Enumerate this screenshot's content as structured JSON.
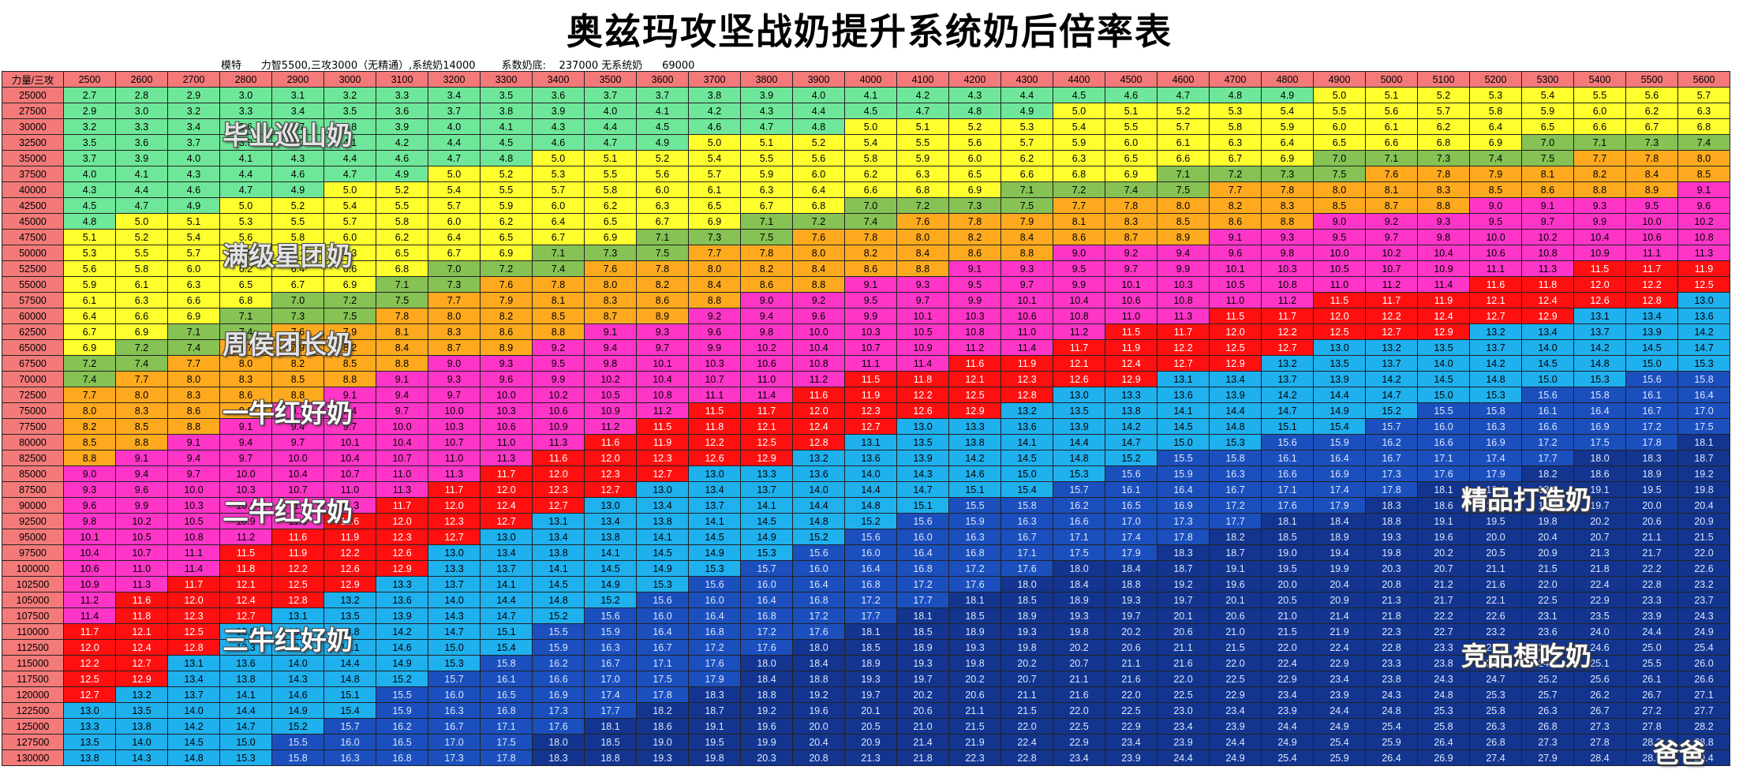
{
  "title": "奥兹玛攻坚战奶提升系统奶后倍率表",
  "subtitle": "模特      力智5500,三攻3000（无精通）,系统奶14000        系数奶底:    237000 无系统奶      69000",
  "corner_label": "力量/三攻",
  "columns": [
    2500,
    2600,
    2700,
    2800,
    2900,
    3000,
    3100,
    3200,
    3300,
    3400,
    3500,
    3600,
    3700,
    3800,
    3900,
    4000,
    4100,
    4200,
    4300,
    4400,
    4500,
    4600,
    4700,
    4800,
    4900,
    5000,
    5100,
    5200,
    5300,
    5400,
    5500,
    5600
  ],
  "rows": [
    25000,
    27500,
    30000,
    32500,
    35000,
    37500,
    40000,
    42500,
    45000,
    47500,
    50000,
    52500,
    55000,
    57500,
    60000,
    62500,
    65000,
    67500,
    70000,
    72500,
    75000,
    77500,
    80000,
    82500,
    85000,
    87500,
    90000,
    92500,
    95000,
    97500,
    100000,
    102500,
    105000,
    107500,
    110000,
    112500,
    115000,
    117500,
    120000,
    122500,
    125000,
    127500,
    130000
  ],
  "tier_colors": {
    "0": "#6fe79a",
    "1": "#ffff2e",
    "2": "#86c254",
    "3": "#ffaa1e",
    "4": "#ff35c8",
    "5": "#ff1010",
    "6": "#1fb0ee",
    "7": "#1b4fbd",
    "8": "#13358f"
  },
  "labels": {
    "tier_a": "毕业巡山奶",
    "tier_b": "满级星团奶",
    "tier_c": "周侯团长奶",
    "tier_d": "一牛红好奶",
    "tier_e": "二牛红好奶",
    "tier_f": "三牛红好奶",
    "tier_g": "精品打造奶",
    "tier_h": "竞品想吃奶",
    "signature": "爸爸"
  }
}
